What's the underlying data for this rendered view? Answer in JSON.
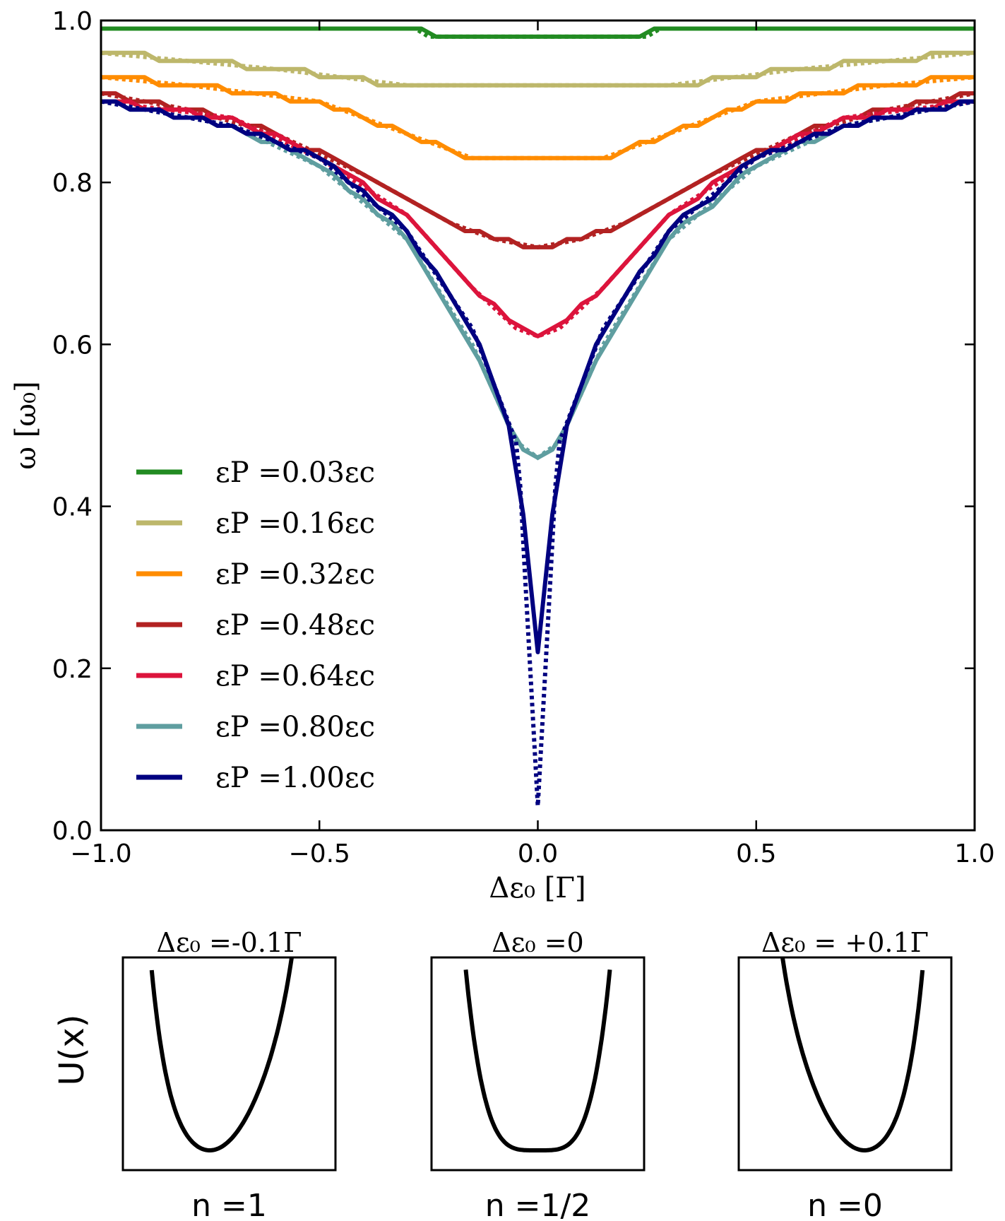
{
  "chart_data": [
    {
      "type": "line",
      "xlabel": "Δε₀ [Γ]",
      "ylabel": "ω [ω₀]",
      "xlim": [
        -1.0,
        1.0
      ],
      "ylim": [
        0.0,
        1.0
      ],
      "x_ticks": [
        "−1.0",
        "−0.5",
        "0.0",
        "0.5",
        "1.0"
      ],
      "y_ticks": [
        "0.0",
        "0.2",
        "0.4",
        "0.6",
        "0.8",
        "1.0"
      ],
      "grid": false,
      "legend_position": "lower-left",
      "note": "solid = simulation, dotted = analytical (same color)",
      "series": [
        {
          "name": "εP =0.03εc",
          "color": "#228b22",
          "min_y": 0.98,
          "width": 0.28,
          "x": [
            -1.0,
            -0.5,
            -0.28,
            -0.25,
            0.0,
            0.25,
            0.28,
            0.5,
            1.0
          ],
          "y": [
            0.99,
            0.99,
            0.99,
            0.98,
            0.98,
            0.98,
            0.99,
            0.99,
            0.99
          ]
        },
        {
          "name": "εP =0.16εc",
          "color": "#bdb76b",
          "min_y": 0.92,
          "width": 0.33,
          "x": [
            -1.0,
            -0.8,
            -0.6,
            -0.3,
            0.0,
            0.3,
            0.6,
            0.8,
            1.0
          ],
          "y": [
            0.96,
            0.95,
            0.94,
            0.92,
            0.92,
            0.92,
            0.94,
            0.95,
            0.96
          ]
        },
        {
          "name": "εP =0.32εc",
          "color": "#ff8c00",
          "min_y": 0.83,
          "width": 0.45,
          "x": [
            -1.0,
            -0.8,
            -0.5,
            -0.3,
            -0.15,
            0.0,
            0.15,
            0.3,
            0.5,
            0.8,
            1.0
          ],
          "y": [
            0.93,
            0.92,
            0.9,
            0.86,
            0.83,
            0.83,
            0.83,
            0.86,
            0.9,
            0.92,
            0.93
          ]
        },
        {
          "name": "εP =0.48εc",
          "color": "#b22222",
          "min_y": 0.72,
          "width": 0.55,
          "x": [
            -1.0,
            -0.8,
            -0.6,
            -0.4,
            -0.2,
            -0.1,
            0.0,
            0.1,
            0.2,
            0.4,
            0.6,
            0.8,
            1.0
          ],
          "y": [
            0.91,
            0.89,
            0.86,
            0.81,
            0.75,
            0.73,
            0.72,
            0.73,
            0.75,
            0.81,
            0.86,
            0.89,
            0.91
          ]
        },
        {
          "name": "εP =0.64εc",
          "color": "#dc143c",
          "min_y": 0.61,
          "width": 0.65,
          "x": [
            -1.0,
            -0.7,
            -0.5,
            -0.3,
            -0.15,
            -0.05,
            0.0,
            0.05,
            0.15,
            0.3,
            0.5,
            0.7,
            1.0
          ],
          "y": [
            0.9,
            0.88,
            0.83,
            0.76,
            0.67,
            0.62,
            0.61,
            0.62,
            0.67,
            0.76,
            0.83,
            0.88,
            0.9
          ]
        },
        {
          "name": "εP =0.80εc",
          "color": "#5f9ea0",
          "min_y": 0.46,
          "width": 0.8,
          "x": [
            -1.0,
            -0.7,
            -0.5,
            -0.3,
            -0.15,
            -0.05,
            0.0,
            0.05,
            0.15,
            0.3,
            0.5,
            0.7,
            1.0
          ],
          "y": [
            0.9,
            0.87,
            0.82,
            0.73,
            0.6,
            0.48,
            0.46,
            0.48,
            0.6,
            0.73,
            0.82,
            0.87,
            0.9
          ]
        },
        {
          "name": "εP =1.00εc",
          "color": "#000080",
          "min_y": 0.22,
          "min_y_dotted": 0.03,
          "width": 0.8,
          "x": [
            -1.0,
            -0.7,
            -0.5,
            -0.3,
            -0.15,
            -0.05,
            -0.02,
            0.0,
            0.02,
            0.05,
            0.15,
            0.3,
            0.5,
            0.7,
            1.0
          ],
          "y": [
            0.9,
            0.87,
            0.83,
            0.74,
            0.62,
            0.48,
            0.31,
            0.22,
            0.31,
            0.48,
            0.62,
            0.74,
            0.83,
            0.87,
            0.9
          ]
        }
      ]
    },
    {
      "type": "line",
      "title": "Δε₀ =-0.1Γ",
      "ylabel": "U(x)",
      "subtitle": "n =1",
      "asymmetry": -1
    },
    {
      "type": "line",
      "title": "Δε₀ =0",
      "subtitle": "n =1/2",
      "asymmetry": 0
    },
    {
      "type": "line",
      "title": "Δε₀ = +0.1Γ",
      "subtitle": "n =0",
      "asymmetry": 1
    }
  ]
}
